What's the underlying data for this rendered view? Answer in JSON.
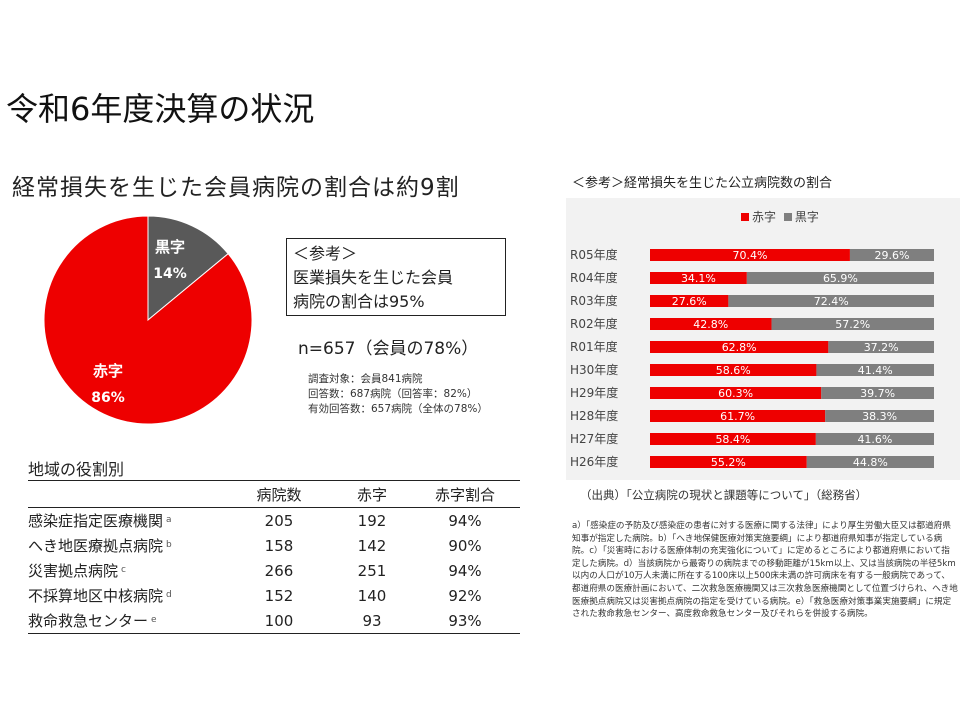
{
  "title": "令和6年度決算の状況",
  "pie_section": {
    "heading": "経常損失を生じた会員病院の割合は約9割",
    "slices": [
      {
        "label": "赤字",
        "percent_label": "86%",
        "value": 86,
        "color": "#ee0000"
      },
      {
        "label": "黒字",
        "percent_label": "14%",
        "value": 14,
        "color": "#595959"
      }
    ],
    "reference_box": {
      "line1": "＜参考＞",
      "line2": "医業損失を生じた会員",
      "line3": "病院の割合は95%"
    },
    "n_text": "n=657（会員の78%）",
    "survey_notes": [
      "調査対象：会員841病院",
      "回答数：687病院（回答率：82%）",
      "有効回答数：657病院（全体の78%）"
    ]
  },
  "region_table": {
    "heading": "地域の役割別",
    "headers": [
      "",
      "病院数",
      "赤字",
      "赤字割合"
    ],
    "rows": [
      {
        "name": "感染症指定医療機関",
        "sup": "a",
        "count": "205",
        "deficit": "192",
        "ratio": "94%"
      },
      {
        "name": "へき地医療拠点病院",
        "sup": "b",
        "count": "158",
        "deficit": "142",
        "ratio": "90%"
      },
      {
        "name": "災害拠点病院",
        "sup": "c",
        "count": "266",
        "deficit": "251",
        "ratio": "94%"
      },
      {
        "name": "不採算地区中核病院",
        "sup": "d",
        "count": "152",
        "deficit": "140",
        "ratio": "92%"
      },
      {
        "name": "救命救急センター",
        "sup": "e",
        "count": "100",
        "deficit": "93",
        "ratio": "93%"
      }
    ]
  },
  "right_section": {
    "heading": "＜参考＞経常損失を生じた公立病院数の割合",
    "source": "（出典）「公立病院の現状と課題等について」（総務省）",
    "footnotes": "a）「感染症の予防及び感染症の患者に対する医療に関する法律」により厚生労働大臣又は都道府県知事が指定した病院。b）「へき地保健医療対策実施要綱」により都道府県知事が指定している病院。c）「災害時における医療体制の充実強化について」に定めるところにより都道府県において指定した病院。d）当該病院から最寄りの病院までの移動距離が15km以上、又は当該病院の半径5km以内の人口が10万人未満に所在する100床以上500床未満の許可病床を有する一般病院であって、都道府県の医療計画において、二次救急医療機関又は三次救急医療機関として位置づけられ、へき地医療拠点病院又は災害拠点病院の指定を受けている病院。e）「救急医療対策事業実施要綱」に規定された救命救急センター、高度救命救急センター及びそれらを併設する病院。"
  },
  "chart_data": [
    {
      "type": "pie",
      "title": "経常損失を生じた会員病院の割合は約9割",
      "categories": [
        "赤字",
        "黒字"
      ],
      "values": [
        86,
        14
      ],
      "colors": [
        "#ee0000",
        "#595959"
      ]
    },
    {
      "type": "bar",
      "orientation": "horizontal",
      "stacked": true,
      "title": "＜参考＞経常損失を生じた公立病院数の割合",
      "categories": [
        "R05年度",
        "R04年度",
        "R03年度",
        "R02年度",
        "R01年度",
        "H30年度",
        "H29年度",
        "H28年度",
        "H27年度",
        "H26年度"
      ],
      "series": [
        {
          "name": "赤字",
          "color": "#ee0000",
          "values": [
            70.4,
            34.1,
            27.6,
            42.8,
            62.8,
            58.6,
            60.3,
            61.7,
            58.4,
            55.2
          ],
          "labels": [
            "70.4%",
            "34.1%",
            "27.6%",
            "42.8%",
            "62.8%",
            "58.6%",
            "60.3%",
            "61.7%",
            "58.4%",
            "55.2%"
          ]
        },
        {
          "name": "黒字",
          "color": "#7f7f7f",
          "values": [
            29.6,
            65.9,
            72.4,
            57.2,
            37.2,
            41.4,
            39.7,
            38.3,
            41.6,
            44.8
          ],
          "labels": [
            "29.6%",
            "65.9%",
            "72.4%",
            "57.2%",
            "37.2%",
            "41.4%",
            "39.7%",
            "38.3%",
            "41.6%",
            "44.8%"
          ]
        }
      ],
      "xlim": [
        0,
        100
      ],
      "legend": "top-center",
      "grid": false
    }
  ]
}
